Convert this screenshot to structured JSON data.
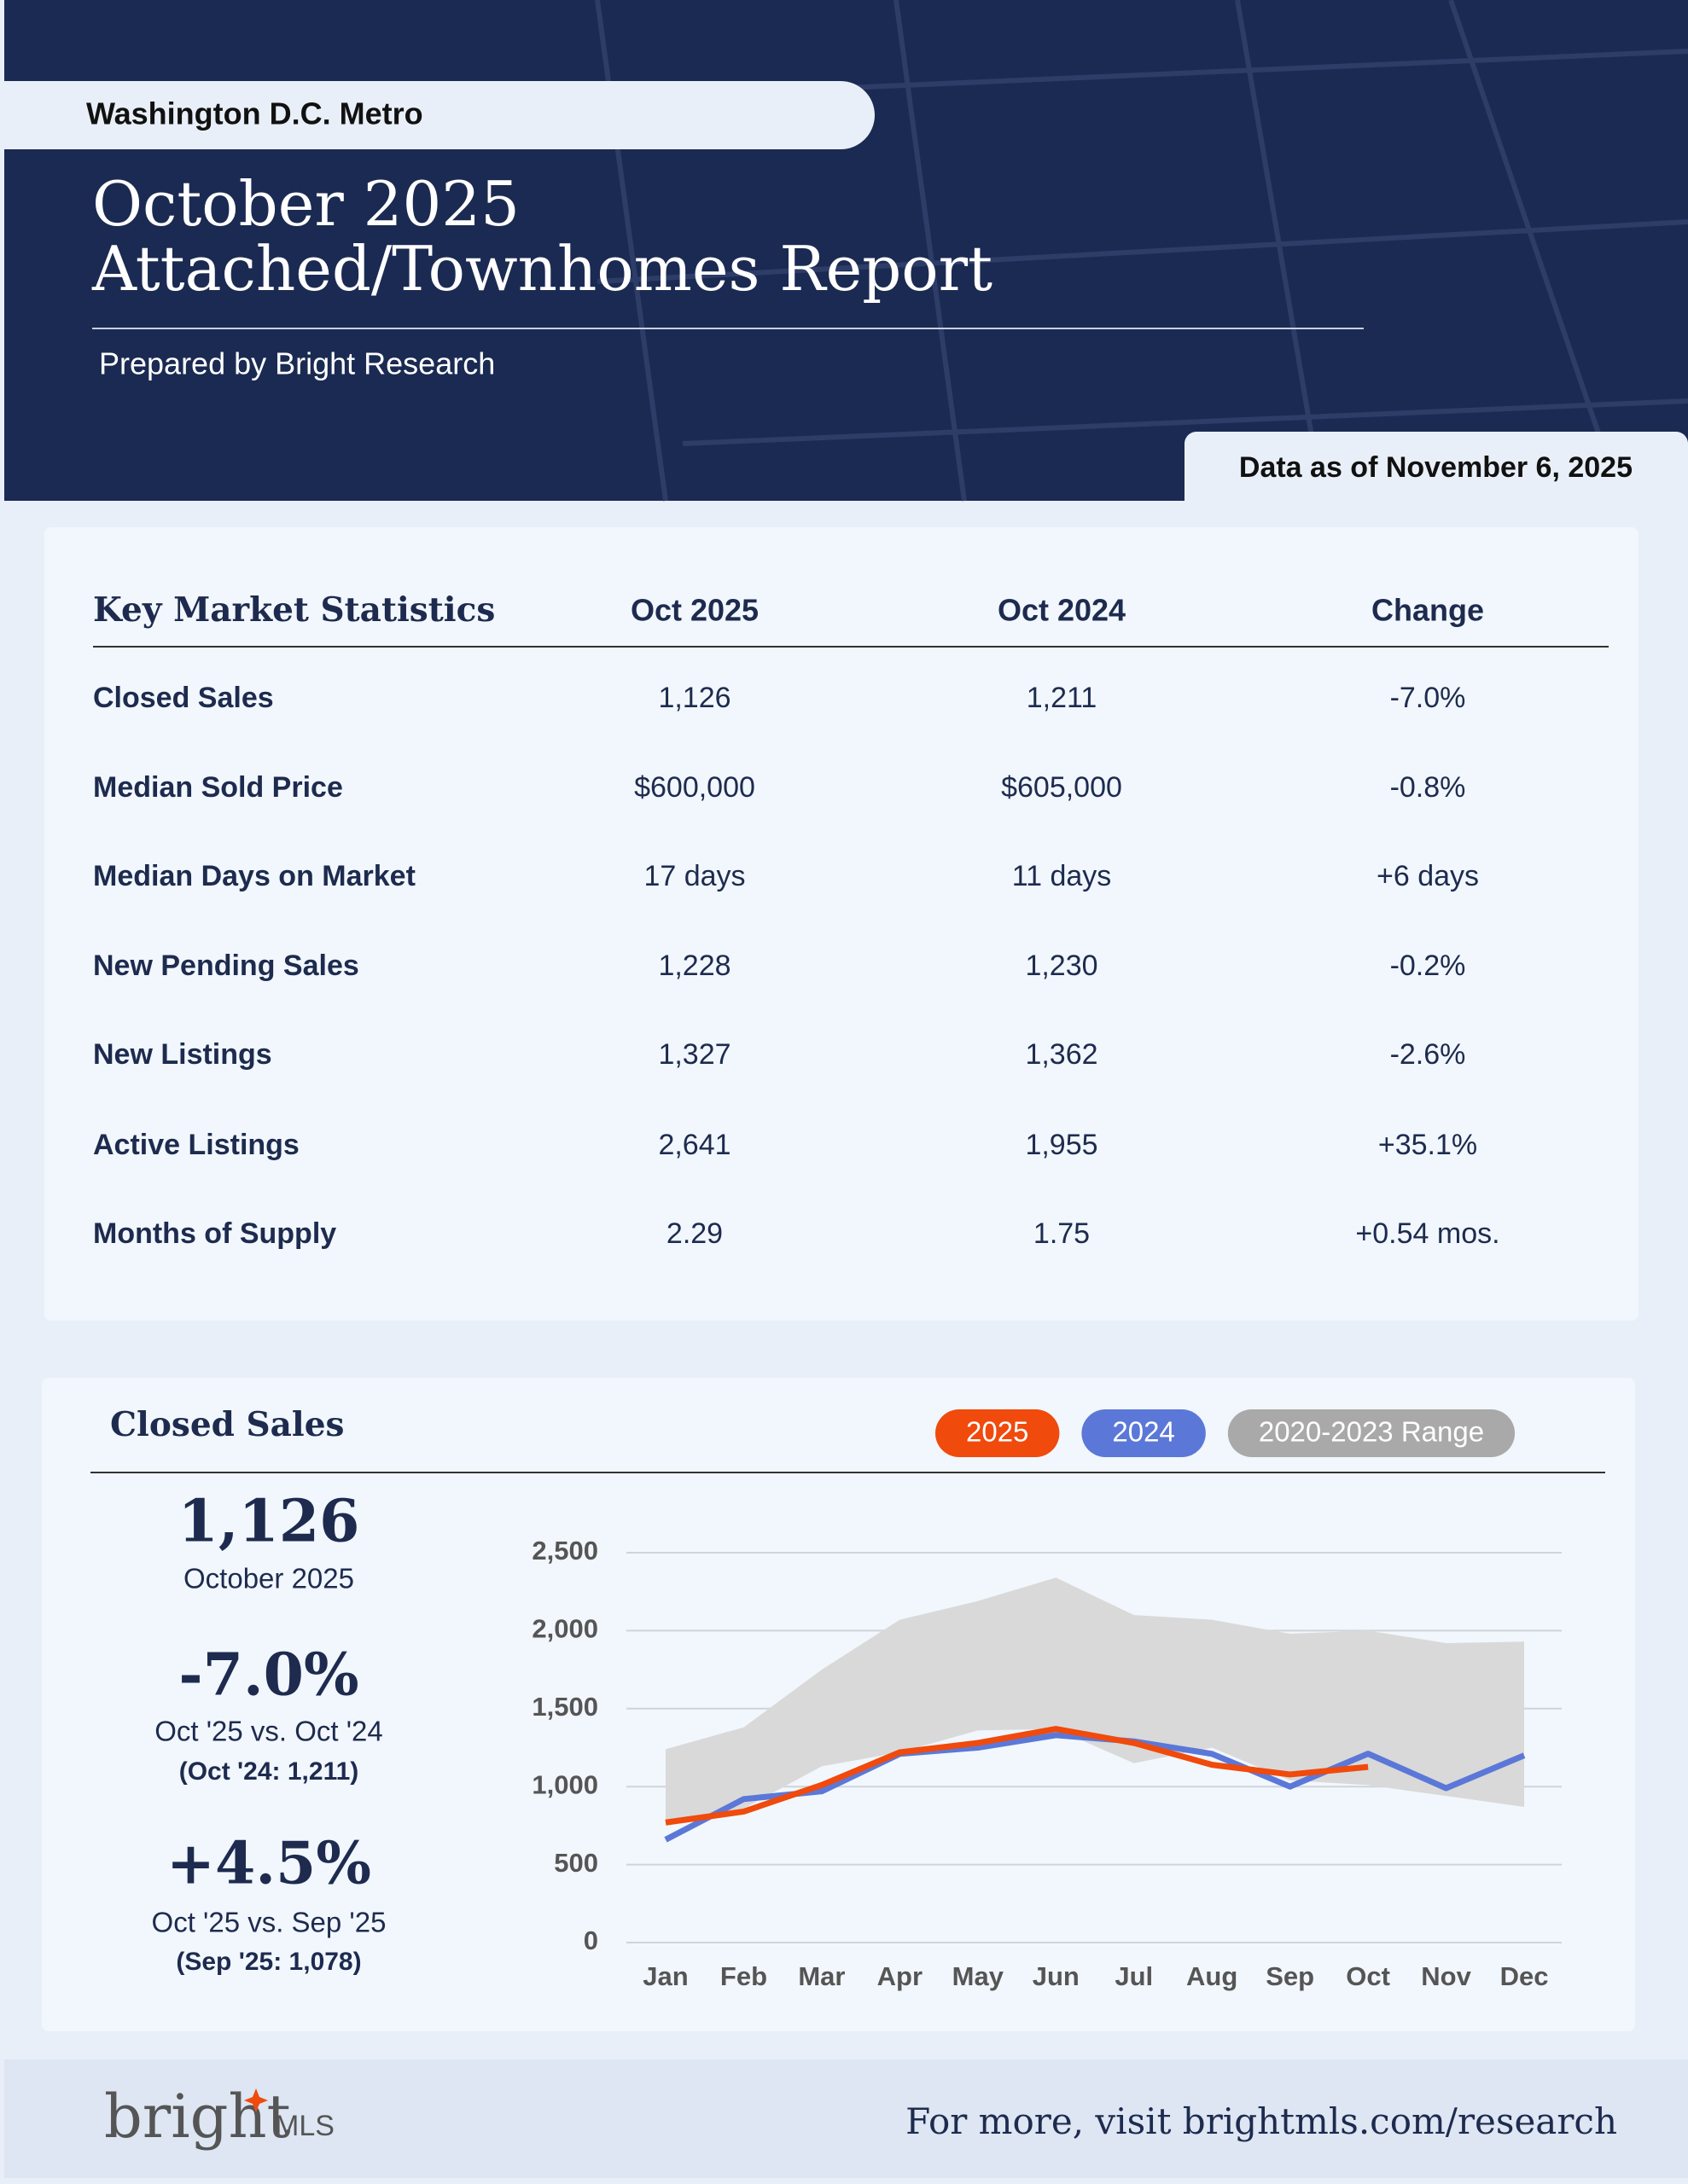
{
  "header": {
    "region": "Washington D.C. Metro",
    "title_line1": "October 2025",
    "title_line2": "Attached/Townhomes Report",
    "prepared_by": "Prepared by Bright Research",
    "data_as_of": "Data as of November 6, 2025"
  },
  "table": {
    "columns": [
      "Key Market Statistics",
      "Oct 2025",
      "Oct 2024",
      "Change"
    ],
    "rows": [
      [
        "Closed Sales",
        "1,126",
        "1,211",
        "-7.0%"
      ],
      [
        "Median Sold Price",
        "$600,000",
        "$605,000",
        "-0.8%"
      ],
      [
        "Median Days on Market",
        "17 days",
        "11 days",
        "+6 days"
      ],
      [
        "New Pending Sales",
        "1,228",
        "1,230",
        "-0.2%"
      ],
      [
        "New Listings",
        "1,327",
        "1,362",
        "-2.6%"
      ],
      [
        "Active Listings",
        "2,641",
        "1,955",
        "+35.1%"
      ],
      [
        "Months of Supply",
        "2.29",
        "1.75",
        "+0.54 mos."
      ]
    ]
  },
  "summary": {
    "value": "1,126",
    "value_caption": "October 2025",
    "yoy": "-7.0%",
    "yoy_caption": "Oct '25 vs. Oct '24",
    "yoy_prior": "(Oct '24: 1,211)",
    "mom": "+4.5%",
    "mom_caption": "Oct '25 vs. Sep '25",
    "mom_prior": "(Sep '25: 1,078)"
  },
  "chart_data": {
    "type": "line",
    "title": "Closed Sales",
    "categories": [
      "Jan",
      "Feb",
      "Mar",
      "Apr",
      "May",
      "Jun",
      "Jul",
      "Aug",
      "Sep",
      "Oct",
      "Nov",
      "Dec"
    ],
    "series": [
      {
        "name": "2025",
        "color": "#f04a0c",
        "values": [
          770,
          840,
          1010,
          1220,
          1280,
          1370,
          1280,
          1140,
          1078,
          1126,
          null,
          null
        ]
      },
      {
        "name": "2024",
        "color": "#5b78d8",
        "values": [
          660,
          920,
          970,
          1210,
          1250,
          1330,
          1290,
          1210,
          1000,
          1211,
          990,
          1200
        ]
      },
      {
        "name": "2020-2023 Range",
        "color": "#a9a9a9",
        "fill": "#d9d9d9",
        "low": [
          760,
          860,
          1130,
          1220,
          1360,
          1370,
          1150,
          1250,
          1040,
          1010,
          940,
          870
        ],
        "high": [
          1240,
          1380,
          1750,
          2070,
          2190,
          2340,
          2100,
          2070,
          1980,
          2000,
          1920,
          1930
        ]
      }
    ],
    "ylim": [
      0,
      2500
    ],
    "yticks": [
      0,
      500,
      {
        "value": 1000,
        "label": "1,000"
      },
      {
        "value": 1500,
        "label": "1,500"
      },
      {
        "value": 2000,
        "label": "2,000"
      },
      {
        "value": 2500,
        "label": "2,500"
      }
    ],
    "grid": true
  },
  "footer": {
    "logo": "bright",
    "logo_suffix": "MLS",
    "link_text": "For more, visit brightmls.com/research"
  }
}
